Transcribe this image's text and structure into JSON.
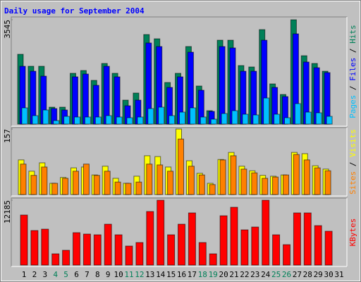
{
  "chart_data": [
    {
      "type": "bar",
      "title": "Daily usage for September 2004",
      "ylim": [
        0,
        3545
      ],
      "yticks": [
        3545
      ],
      "legend_separator": " / ",
      "series": [
        {
          "name": "Hits",
          "color": "#008058",
          "values": [
            2371,
            1964,
            1964,
            575,
            575,
            1725,
            1820,
            1485,
            2060,
            1725,
            814,
            1054,
            3042,
            2898,
            1413,
            1725,
            2635,
            1293,
            455,
            2850,
            2850,
            1988,
            1940,
            3210,
            1365,
            1006,
            3545,
            2323,
            2060,
            1796,
            null
          ]
        },
        {
          "name": "Files",
          "color": "#0000ff",
          "values": [
            1964,
            1796,
            1629,
            527,
            479,
            1605,
            1701,
            1317,
            1964,
            1605,
            623,
            814,
            2755,
            2635,
            1246,
            1605,
            2443,
            1150,
            431,
            2635,
            2587,
            1796,
            1796,
            2850,
            1246,
            934,
            3066,
            2108,
            1916,
            1749,
            null
          ]
        },
        {
          "name": "Pages",
          "color": "#00c0ff",
          "values": [
            551,
            287,
            479,
            120,
            263,
            240,
            240,
            240,
            287,
            240,
            216,
            240,
            527,
            575,
            287,
            407,
            551,
            240,
            168,
            359,
            455,
            335,
            311,
            886,
            335,
            216,
            695,
            407,
            383,
            263,
            null
          ]
        }
      ]
    },
    {
      "type": "bar",
      "ylim": [
        0,
        157
      ],
      "yticks": [
        157
      ],
      "legend_separator": " / ",
      "series": [
        {
          "name": "Visits",
          "color": "#ffff00",
          "values": [
            83,
            56,
            76,
            27,
            41,
            64,
            66,
            47,
            68,
            39,
            27,
            44,
            93,
            91,
            66,
            157,
            81,
            51,
            27,
            84,
            101,
            68,
            57,
            46,
            44,
            47,
            101,
            98,
            69,
            61,
            null
          ]
        },
        {
          "name": "Sites",
          "color": "#ff8000",
          "values": [
            73,
            46,
            66,
            27,
            39,
            56,
            73,
            46,
            56,
            30,
            27,
            30,
            73,
            71,
            56,
            133,
            68,
            47,
            24,
            83,
            93,
            61,
            52,
            39,
            42,
            47,
            96,
            83,
            64,
            57,
            null
          ]
        }
      ]
    },
    {
      "type": "bar",
      "ylim": [
        0,
        12185
      ],
      "yticks": [
        12185
      ],
      "categories": [
        "1",
        "2",
        "3",
        "4",
        "5",
        "6",
        "7",
        "8",
        "9",
        "10",
        "11",
        "12",
        "13",
        "14",
        "15",
        "16",
        "17",
        "18",
        "19",
        "20",
        "21",
        "22",
        "23",
        "24",
        "25",
        "26",
        "27",
        "28",
        "29",
        "30",
        "31"
      ],
      "category_colors": [
        "#000000",
        "#000000",
        "#000000",
        "#008058",
        "#008058",
        "#000000",
        "#000000",
        "#000000",
        "#000000",
        "#000000",
        "#008058",
        "#008058",
        "#000000",
        "#000000",
        "#000000",
        "#000000",
        "#000000",
        "#008058",
        "#008058",
        "#000000",
        "#000000",
        "#000000",
        "#000000",
        "#000000",
        "#008058",
        "#008058",
        "#000000",
        "#000000",
        "#000000",
        "#000000",
        "#000000"
      ],
      "series": [
        {
          "name": "KBytes",
          "color": "#ff0000",
          "values": [
            9404,
            6490,
            6755,
            2119,
            2781,
            6093,
            5828,
            5695,
            7682,
            5695,
            3576,
            4238,
            10066,
            12185,
            5695,
            7682,
            9801,
            4238,
            2119,
            9271,
            10861,
            6622,
            7152,
            12185,
            5695,
            3841,
            9801,
            9801,
            7417,
            6358,
            null
          ]
        }
      ]
    }
  ]
}
